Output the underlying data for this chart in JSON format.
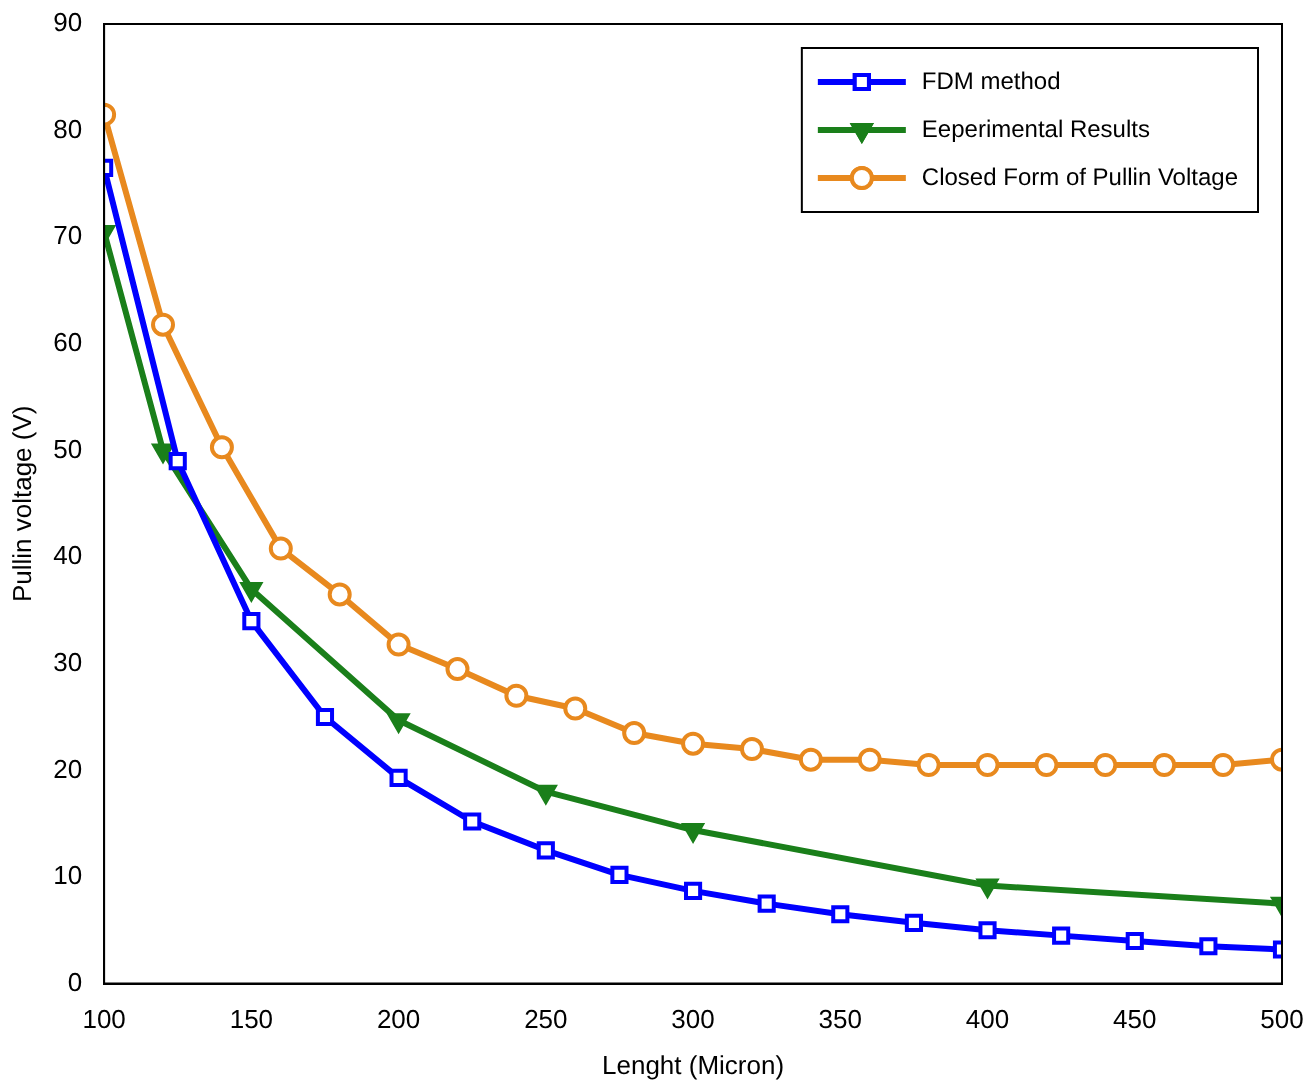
{
  "chart_data": {
    "type": "line",
    "xlabel": "Lenght (Micron)",
    "ylabel": "Pullin voltage (V)",
    "xlim": [
      100,
      500
    ],
    "xticks": [
      100,
      150,
      200,
      250,
      300,
      350,
      400,
      450,
      500
    ],
    "ylim": [
      0,
      90
    ],
    "yticks": [
      0,
      10,
      20,
      30,
      40,
      50,
      60,
      70,
      80,
      90
    ],
    "grid": false,
    "legend": "top right",
    "line_style": "solid",
    "series": [
      {
        "name": "FDM method",
        "color": "#0000ff",
        "marker": "square",
        "x": [
          100,
          125,
          150,
          175,
          200,
          225,
          250,
          275,
          300,
          325,
          350,
          375,
          400,
          425,
          450,
          475,
          500
        ],
        "values": [
          76.5,
          49,
          34,
          25,
          19.3,
          15.2,
          12.5,
          10.2,
          8.7,
          7.5,
          6.5,
          5.7,
          5,
          4.5,
          4,
          3.5,
          3.2
        ]
      },
      {
        "name": "Eeperimental Results",
        "color": "#1a7f1a",
        "marker": "triangle",
        "x": [
          100,
          120,
          150,
          200,
          250,
          300,
          400,
          500
        ],
        "values": [
          70.5,
          50,
          37,
          24.7,
          18,
          14.4,
          9.2,
          7.5
        ]
      },
      {
        "name": "Closed Form of Pullin Voltage",
        "color": "#e8891e",
        "marker": "circle",
        "x": [
          100,
          120,
          140,
          160,
          180,
          200,
          220,
          240,
          260,
          280,
          300,
          320,
          340,
          360,
          380,
          400,
          420,
          440,
          460,
          480,
          500
        ],
        "values": [
          81.5,
          61.8,
          50.3,
          40.8,
          36.5,
          31.8,
          29.5,
          27,
          25.8,
          23.5,
          22.5,
          22,
          21,
          21,
          20.5,
          20.5,
          20.5,
          20.5,
          20.5,
          20.5,
          21
        ]
      }
    ]
  }
}
